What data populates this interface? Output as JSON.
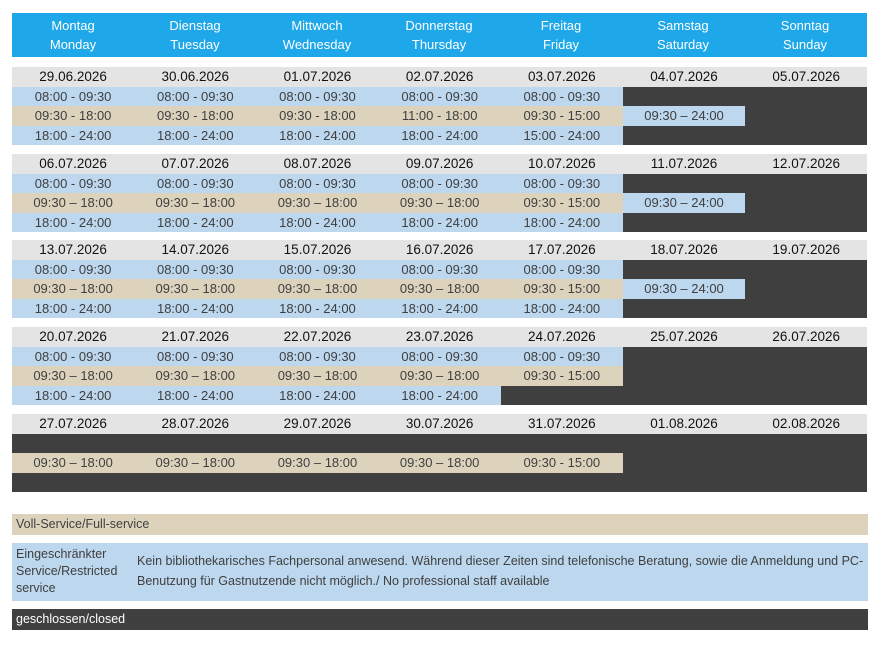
{
  "days": [
    {
      "de": "Montag",
      "en": "Monday"
    },
    {
      "de": "Dienstag",
      "en": "Tuesday"
    },
    {
      "de": "Mittwoch",
      "en": "Wednesday"
    },
    {
      "de": "Donnerstag",
      "en": "Thursday"
    },
    {
      "de": "Freitag",
      "en": "Friday"
    },
    {
      "de": "Samstag",
      "en": "Saturday"
    },
    {
      "de": "Sonntag",
      "en": "Sunday"
    }
  ],
  "weeks": [
    {
      "dates": [
        "29.06.2026",
        "30.06.2026",
        "01.07.2026",
        "02.07.2026",
        "03.07.2026",
        "04.07.2026",
        "05.07.2026"
      ],
      "rows": [
        [
          {
            "t": "08:00 - 09:30",
            "s": "blue"
          },
          {
            "t": "08:00 - 09:30",
            "s": "blue"
          },
          {
            "t": "08:00 - 09:30",
            "s": "blue"
          },
          {
            "t": "08:00 - 09:30",
            "s": "blue"
          },
          {
            "t": "08:00 - 09:30",
            "s": "blue"
          },
          {
            "t": "",
            "s": "dark"
          },
          {
            "t": "",
            "s": "dark"
          }
        ],
        [
          {
            "t": "09:30 - 18:00",
            "s": "beige"
          },
          {
            "t": "09:30 - 18:00",
            "s": "beige"
          },
          {
            "t": "09:30 - 18:00",
            "s": "beige"
          },
          {
            "t": "11:00 - 18:00",
            "s": "beige"
          },
          {
            "t": "09:30 - 15:00",
            "s": "beige"
          },
          {
            "t": "09:30 – 24:00",
            "s": "blue"
          },
          {
            "t": "",
            "s": "dark"
          }
        ],
        [
          {
            "t": "18:00 - 24:00",
            "s": "blue"
          },
          {
            "t": "18:00 - 24:00",
            "s": "blue"
          },
          {
            "t": "18:00 - 24:00",
            "s": "blue"
          },
          {
            "t": "18:00 - 24:00",
            "s": "blue"
          },
          {
            "t": "15:00 - 24:00",
            "s": "blue"
          },
          {
            "t": "",
            "s": "dark"
          },
          {
            "t": "",
            "s": "dark"
          }
        ]
      ]
    },
    {
      "dates": [
        "06.07.2026",
        "07.07.2026",
        "08.07.2026",
        "09.07.2026",
        "10.07.2026",
        "11.07.2026",
        "12.07.2026"
      ],
      "rows": [
        [
          {
            "t": "08:00 - 09:30",
            "s": "blue"
          },
          {
            "t": "08:00 - 09:30",
            "s": "blue"
          },
          {
            "t": "08:00 - 09:30",
            "s": "blue"
          },
          {
            "t": "08:00 - 09:30",
            "s": "blue"
          },
          {
            "t": "08:00 - 09:30",
            "s": "blue"
          },
          {
            "t": "",
            "s": "dark"
          },
          {
            "t": "",
            "s": "dark"
          }
        ],
        [
          {
            "t": "09:30 – 18:00",
            "s": "beige"
          },
          {
            "t": "09:30 – 18:00",
            "s": "beige"
          },
          {
            "t": "09:30 – 18:00",
            "s": "beige"
          },
          {
            "t": "09:30 – 18:00",
            "s": "beige"
          },
          {
            "t": "09:30 - 15:00",
            "s": "beige"
          },
          {
            "t": "09:30 – 24:00",
            "s": "blue"
          },
          {
            "t": "",
            "s": "dark"
          }
        ],
        [
          {
            "t": "18:00 - 24:00",
            "s": "blue"
          },
          {
            "t": "18:00 - 24:00",
            "s": "blue"
          },
          {
            "t": "18:00 - 24:00",
            "s": "blue"
          },
          {
            "t": "18:00 - 24:00",
            "s": "blue"
          },
          {
            "t": "18:00 - 24:00",
            "s": "blue"
          },
          {
            "t": "",
            "s": "dark"
          },
          {
            "t": "",
            "s": "dark"
          }
        ]
      ]
    },
    {
      "dates": [
        "13.07.2026",
        "14.07.2026",
        "15.07.2026",
        "16.07.2026",
        "17.07.2026",
        "18.07.2026",
        "19.07.2026"
      ],
      "rows": [
        [
          {
            "t": "08:00 - 09:30",
            "s": "blue"
          },
          {
            "t": "08:00 - 09:30",
            "s": "blue"
          },
          {
            "t": "08:00 - 09:30",
            "s": "blue"
          },
          {
            "t": "08:00 - 09:30",
            "s": "blue"
          },
          {
            "t": "08:00 - 09:30",
            "s": "blue"
          },
          {
            "t": "",
            "s": "dark"
          },
          {
            "t": "",
            "s": "dark"
          }
        ],
        [
          {
            "t": "09:30 – 18:00",
            "s": "beige"
          },
          {
            "t": "09:30 – 18:00",
            "s": "beige"
          },
          {
            "t": "09:30 – 18:00",
            "s": "beige"
          },
          {
            "t": "09:30 – 18:00",
            "s": "beige"
          },
          {
            "t": "09:30 - 15:00",
            "s": "beige"
          },
          {
            "t": "09:30 – 24:00",
            "s": "blue"
          },
          {
            "t": "",
            "s": "dark"
          }
        ],
        [
          {
            "t": "18:00 - 24:00",
            "s": "blue"
          },
          {
            "t": "18:00 - 24:00",
            "s": "blue"
          },
          {
            "t": "18:00 - 24:00",
            "s": "blue"
          },
          {
            "t": "18:00 - 24:00",
            "s": "blue"
          },
          {
            "t": "18:00 - 24:00",
            "s": "blue"
          },
          {
            "t": "",
            "s": "dark"
          },
          {
            "t": "",
            "s": "dark"
          }
        ]
      ]
    },
    {
      "dates": [
        "20.07.2026",
        "21.07.2026",
        "22.07.2026",
        "23.07.2026",
        "24.07.2026",
        "25.07.2026",
        "26.07.2026"
      ],
      "rows": [
        [
          {
            "t": "08:00 - 09:30",
            "s": "blue"
          },
          {
            "t": "08:00 - 09:30",
            "s": "blue"
          },
          {
            "t": "08:00 - 09:30",
            "s": "blue"
          },
          {
            "t": "08:00 - 09:30",
            "s": "blue"
          },
          {
            "t": "08:00 - 09:30",
            "s": "blue"
          },
          {
            "t": "",
            "s": "dark"
          },
          {
            "t": "",
            "s": "dark"
          }
        ],
        [
          {
            "t": "09:30 – 18:00",
            "s": "beige"
          },
          {
            "t": "09:30 – 18:00",
            "s": "beige"
          },
          {
            "t": "09:30 – 18:00",
            "s": "beige"
          },
          {
            "t": "09:30 – 18:00",
            "s": "beige"
          },
          {
            "t": "09:30 - 15:00",
            "s": "beige"
          },
          {
            "t": "",
            "s": "dark"
          },
          {
            "t": "",
            "s": "dark"
          }
        ],
        [
          {
            "t": "18:00 - 24:00",
            "s": "blue"
          },
          {
            "t": "18:00 - 24:00",
            "s": "blue"
          },
          {
            "t": "18:00 - 24:00",
            "s": "blue"
          },
          {
            "t": "18:00 - 24:00",
            "s": "blue"
          },
          {
            "t": "",
            "s": "dark"
          },
          {
            "t": "",
            "s": "dark"
          },
          {
            "t": "",
            "s": "dark"
          }
        ]
      ]
    },
    {
      "dates": [
        "27.07.2026",
        "28.07.2026",
        "29.07.2026",
        "30.07.2026",
        "31.07.2026",
        "01.08.2026",
        "02.08.2026"
      ],
      "rows": [
        [
          {
            "t": "",
            "s": "dark"
          },
          {
            "t": "",
            "s": "dark"
          },
          {
            "t": "",
            "s": "dark"
          },
          {
            "t": "",
            "s": "dark"
          },
          {
            "t": "",
            "s": "dark"
          },
          {
            "t": "",
            "s": "dark"
          },
          {
            "t": "",
            "s": "dark"
          }
        ],
        [
          {
            "t": "09:30 – 18:00",
            "s": "beige"
          },
          {
            "t": "09:30 – 18:00",
            "s": "beige"
          },
          {
            "t": "09:30 – 18:00",
            "s": "beige"
          },
          {
            "t": "09:30 – 18:00",
            "s": "beige"
          },
          {
            "t": "09:30 - 15:00",
            "s": "beige"
          },
          {
            "t": "",
            "s": "dark"
          },
          {
            "t": "",
            "s": "dark"
          }
        ],
        [
          {
            "t": "",
            "s": "dark"
          },
          {
            "t": "",
            "s": "dark"
          },
          {
            "t": "",
            "s": "dark"
          },
          {
            "t": "",
            "s": "dark"
          },
          {
            "t": "",
            "s": "dark"
          },
          {
            "t": "",
            "s": "dark"
          },
          {
            "t": "",
            "s": "dark"
          }
        ]
      ]
    }
  ],
  "legend": {
    "full": "Voll-Service/Full-service",
    "restricted_title": "Eingeschränkter Service/Restricted service",
    "restricted_desc": "Kein bibliothekarisches Fachpersonal anwesend. Während dieser Zeiten sind telefonische Beratung, sowie die Anmeldung und PC-Benutzung für Gastnutzende nicht möglich./ No professional staff available",
    "closed": "geschlossen/closed"
  },
  "colors": {
    "header": "#1ea7e9",
    "date_row": "#e4e4e4",
    "restricted": "#bcd7ee",
    "full": "#ddd3bd",
    "closed": "#3f3f3f"
  }
}
